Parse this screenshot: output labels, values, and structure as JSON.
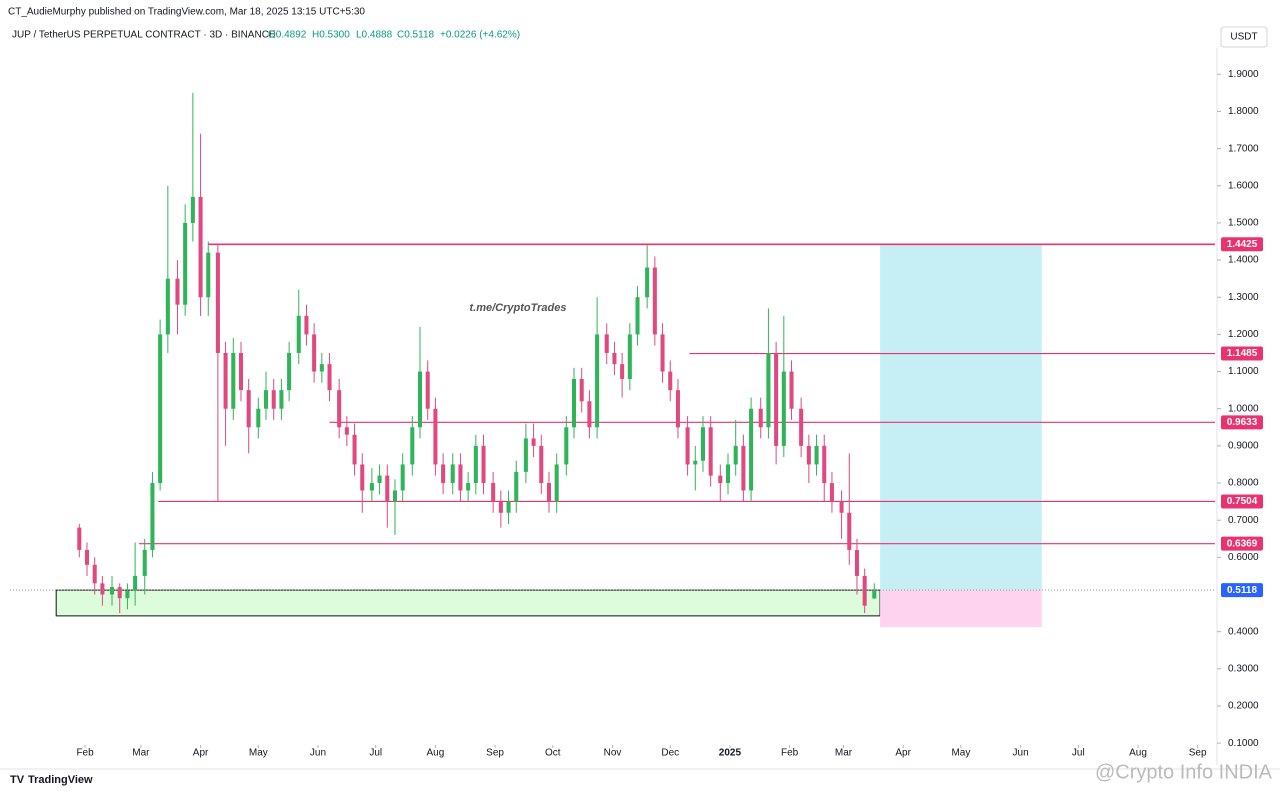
{
  "header": {
    "publisher": "CT_AudieMurphy published on TradingView.com, Mar 18, 2025 13:15 UTC+5:30",
    "symbol": "JUP / TetherUS PERPETUAL CONTRACT · 3D · BINANCE",
    "open": "O0.4892",
    "high": "H0.5300",
    "low": "L0.4888",
    "close": "C0.5118",
    "change": "+0.0226 (+4.62%)",
    "currency": "USDT"
  },
  "footer": {
    "brand": "TradingView",
    "watermark": "@Crypto Info INDIA"
  },
  "chart_data": {
    "type": "candlestick",
    "annotation": "t.me/CryptoTrades",
    "up_color": "#2fb45a",
    "down_color": "#e0497f",
    "xlim": [
      -8,
      618
    ],
    "ylim": [
      0.095,
      1.96
    ],
    "xticks": [
      {
        "value": 31,
        "label": "Feb"
      },
      {
        "value": 60,
        "label": "Mar"
      },
      {
        "value": 91,
        "label": "Apr"
      },
      {
        "value": 121,
        "label": "May"
      },
      {
        "value": 152,
        "label": "Jun"
      },
      {
        "value": 182,
        "label": "Jul"
      },
      {
        "value": 213,
        "label": "Aug"
      },
      {
        "value": 244,
        "label": "Sep"
      },
      {
        "value": 274,
        "label": "Oct"
      },
      {
        "value": 305,
        "label": "Nov"
      },
      {
        "value": 335,
        "label": "Dec"
      },
      {
        "value": 366,
        "label": "2025"
      },
      {
        "value": 397,
        "label": "Feb"
      },
      {
        "value": 425,
        "label": "Mar"
      },
      {
        "value": 456,
        "label": "Apr"
      },
      {
        "value": 486,
        "label": "May"
      },
      {
        "value": 517,
        "label": "Jun"
      },
      {
        "value": 547,
        "label": "Jul"
      },
      {
        "value": 578,
        "label": "Aug"
      },
      {
        "value": 609,
        "label": "Sep"
      }
    ],
    "yticks": [
      {
        "value": 1.9,
        "label": "1.9000"
      },
      {
        "value": 1.8,
        "label": "1.8000"
      },
      {
        "value": 1.7,
        "label": "1.7000"
      },
      {
        "value": 1.6,
        "label": "1.6000"
      },
      {
        "value": 1.5,
        "label": "1.5000"
      },
      {
        "value": 1.4,
        "label": "1.4000"
      },
      {
        "value": 1.3,
        "label": "1.3000"
      },
      {
        "value": 1.2,
        "label": "1.2000"
      },
      {
        "value": 1.1,
        "label": "1.1000"
      },
      {
        "value": 1.0,
        "label": "1.0000"
      },
      {
        "value": 0.9,
        "label": "0.9000"
      },
      {
        "value": 0.8,
        "label": "0.8000"
      },
      {
        "value": 0.7,
        "label": "0.7000"
      },
      {
        "value": 0.6,
        "label": "0.6000"
      },
      {
        "value": 0.4,
        "label": "0.4000"
      },
      {
        "value": 0.3,
        "label": "0.3000"
      },
      {
        "value": 0.2,
        "label": "0.2000"
      },
      {
        "value": 0.1,
        "label": "0.1000"
      }
    ],
    "levels": [
      {
        "value": 1.4425,
        "start": 95,
        "color": "#e8336e"
      },
      {
        "value": 1.1485,
        "start": 345,
        "color": "#e8336e"
      },
      {
        "value": 0.9633,
        "start": 158,
        "color": "#e8336e"
      },
      {
        "value": 0.7504,
        "start": 69,
        "color": "#e8336e"
      },
      {
        "value": 0.6369,
        "start": 59,
        "color": "#e8336e"
      }
    ],
    "zones": [
      {
        "x": [
          16,
          444
        ],
        "y": [
          0.4425,
          0.5118
        ],
        "color": "#dcfcdc",
        "stroke": "#111111"
      },
      {
        "x": [
          444,
          528
        ],
        "y": [
          0.5118,
          1.4425
        ],
        "color": "#c6eef5"
      },
      {
        "x": [
          444,
          528
        ],
        "y": [
          0.4123,
          0.5118
        ],
        "color": "#fdd3f0"
      }
    ],
    "candles": [
      [
        28,
        0.68,
        0.69,
        0.6,
        0.62
      ],
      [
        32,
        0.62,
        0.64,
        0.55,
        0.58
      ],
      [
        36,
        0.58,
        0.6,
        0.5,
        0.53
      ],
      [
        40,
        0.53,
        0.55,
        0.47,
        0.5
      ],
      [
        45,
        0.5,
        0.55,
        0.47,
        0.52
      ],
      [
        49,
        0.52,
        0.53,
        0.45,
        0.49
      ],
      [
        53,
        0.49,
        0.53,
        0.46,
        0.51
      ],
      [
        57,
        0.51,
        0.64,
        0.47,
        0.55
      ],
      [
        62,
        0.55,
        0.65,
        0.5,
        0.62
      ],
      [
        66,
        0.62,
        0.83,
        0.6,
        0.8
      ],
      [
        70,
        0.8,
        1.24,
        0.78,
        1.2
      ],
      [
        74,
        1.2,
        1.6,
        1.15,
        1.35
      ],
      [
        79,
        1.35,
        1.4,
        1.2,
        1.28
      ],
      [
        83,
        1.28,
        1.55,
        1.25,
        1.5
      ],
      [
        87,
        1.5,
        1.85,
        1.45,
        1.57
      ],
      [
        91,
        1.57,
        1.74,
        1.25,
        1.3
      ],
      [
        95,
        1.3,
        1.45,
        1.25,
        1.42
      ],
      [
        100,
        1.42,
        1.44,
        0.75,
        1.15
      ],
      [
        104,
        1.15,
        1.18,
        0.9,
        1.0
      ],
      [
        108,
        1.0,
        1.19,
        0.97,
        1.15
      ],
      [
        112,
        1.15,
        1.18,
        1.02,
        1.05
      ],
      [
        116,
        1.05,
        1.08,
        0.88,
        0.95
      ],
      [
        121,
        0.95,
        1.03,
        0.92,
        1.0
      ],
      [
        125,
        1.0,
        1.1,
        0.97,
        1.05
      ],
      [
        129,
        1.05,
        1.08,
        0.97,
        1.0
      ],
      [
        133,
        1.0,
        1.08,
        0.97,
        1.05
      ],
      [
        137,
        1.05,
        1.18,
        1.02,
        1.15
      ],
      [
        142,
        1.15,
        1.32,
        1.12,
        1.25
      ],
      [
        146,
        1.25,
        1.28,
        1.17,
        1.2
      ],
      [
        150,
        1.2,
        1.23,
        1.07,
        1.1
      ],
      [
        154,
        1.1,
        1.15,
        1.07,
        1.12
      ],
      [
        158,
        1.12,
        1.15,
        1.02,
        1.05
      ],
      [
        163,
        1.05,
        1.08,
        0.92,
        0.95
      ],
      [
        167,
        0.95,
        0.98,
        0.9,
        0.93
      ],
      [
        171,
        0.93,
        0.96,
        0.82,
        0.85
      ],
      [
        175,
        0.85,
        0.88,
        0.72,
        0.78
      ],
      [
        180,
        0.78,
        0.84,
        0.75,
        0.8
      ],
      [
        184,
        0.8,
        0.85,
        0.77,
        0.82
      ],
      [
        188,
        0.82,
        0.85,
        0.68,
        0.75
      ],
      [
        192,
        0.75,
        0.81,
        0.66,
        0.78
      ],
      [
        196,
        0.78,
        0.88,
        0.75,
        0.85
      ],
      [
        201,
        0.85,
        0.98,
        0.82,
        0.95
      ],
      [
        205,
        0.95,
        1.22,
        0.92,
        1.1
      ],
      [
        209,
        1.1,
        1.13,
        0.97,
        1.0
      ],
      [
        213,
        1.0,
        1.03,
        0.82,
        0.85
      ],
      [
        217,
        0.85,
        0.88,
        0.77,
        0.8
      ],
      [
        222,
        0.8,
        0.88,
        0.77,
        0.85
      ],
      [
        226,
        0.85,
        0.88,
        0.75,
        0.78
      ],
      [
        230,
        0.78,
        0.83,
        0.75,
        0.8
      ],
      [
        234,
        0.8,
        0.93,
        0.77,
        0.9
      ],
      [
        238,
        0.9,
        0.93,
        0.77,
        0.8
      ],
      [
        243,
        0.8,
        0.83,
        0.72,
        0.75
      ],
      [
        247,
        0.75,
        0.78,
        0.68,
        0.72
      ],
      [
        251,
        0.72,
        0.78,
        0.69,
        0.75
      ],
      [
        255,
        0.75,
        0.86,
        0.72,
        0.83
      ],
      [
        260,
        0.83,
        0.96,
        0.8,
        0.92
      ],
      [
        264,
        0.92,
        0.96,
        0.87,
        0.9
      ],
      [
        268,
        0.9,
        0.93,
        0.77,
        0.8
      ],
      [
        272,
        0.8,
        0.83,
        0.72,
        0.75
      ],
      [
        276,
        0.75,
        0.88,
        0.72,
        0.85
      ],
      [
        281,
        0.85,
        0.98,
        0.82,
        0.95
      ],
      [
        285,
        0.95,
        1.11,
        0.92,
        1.08
      ],
      [
        289,
        1.08,
        1.11,
        0.99,
        1.02
      ],
      [
        293,
        1.02,
        1.05,
        0.92,
        0.95
      ],
      [
        297,
        0.95,
        1.3,
        0.92,
        1.2
      ],
      [
        302,
        1.2,
        1.23,
        1.12,
        1.15
      ],
      [
        306,
        1.15,
        1.18,
        1.09,
        1.12
      ],
      [
        310,
        1.12,
        1.15,
        1.03,
        1.08
      ],
      [
        314,
        1.08,
        1.23,
        1.05,
        1.2
      ],
      [
        318,
        1.2,
        1.33,
        1.17,
        1.3
      ],
      [
        323,
        1.3,
        1.44,
        1.27,
        1.38
      ],
      [
        327,
        1.38,
        1.41,
        1.17,
        1.2
      ],
      [
        331,
        1.2,
        1.23,
        1.07,
        1.1
      ],
      [
        335,
        1.1,
        1.13,
        1.02,
        1.05
      ],
      [
        339,
        1.05,
        1.08,
        0.92,
        0.95
      ],
      [
        344,
        0.95,
        0.98,
        0.82,
        0.85
      ],
      [
        348,
        0.85,
        0.9,
        0.78,
        0.86
      ],
      [
        352,
        0.86,
        0.98,
        0.83,
        0.95
      ],
      [
        356,
        0.95,
        0.98,
        0.79,
        0.82
      ],
      [
        361,
        0.82,
        0.85,
        0.75,
        0.8
      ],
      [
        365,
        0.8,
        0.88,
        0.77,
        0.85
      ],
      [
        369,
        0.85,
        0.97,
        0.82,
        0.9
      ],
      [
        373,
        0.9,
        0.93,
        0.75,
        0.78
      ],
      [
        377,
        0.78,
        1.03,
        0.75,
        1.0
      ],
      [
        382,
        1.0,
        1.03,
        0.92,
        0.95
      ],
      [
        386,
        0.95,
        1.27,
        0.92,
        1.15
      ],
      [
        390,
        1.15,
        1.18,
        0.85,
        0.9
      ],
      [
        394,
        0.9,
        1.25,
        0.87,
        1.1
      ],
      [
        398,
        1.1,
        1.13,
        0.97,
        1.0
      ],
      [
        403,
        1.0,
        1.03,
        0.87,
        0.9
      ],
      [
        407,
        0.9,
        0.93,
        0.8,
        0.85
      ],
      [
        411,
        0.85,
        0.93,
        0.82,
        0.9
      ],
      [
        415,
        0.9,
        0.93,
        0.75,
        0.8
      ],
      [
        419,
        0.8,
        0.83,
        0.72,
        0.75
      ],
      [
        424,
        0.75,
        0.78,
        0.65,
        0.72
      ],
      [
        428,
        0.72,
        0.88,
        0.58,
        0.62
      ],
      [
        432,
        0.62,
        0.65,
        0.5,
        0.55
      ],
      [
        436,
        0.55,
        0.57,
        0.45,
        0.47
      ],
      [
        441,
        0.4892,
        0.53,
        0.4888,
        0.5118
      ]
    ],
    "last_color": "#2962ff"
  }
}
